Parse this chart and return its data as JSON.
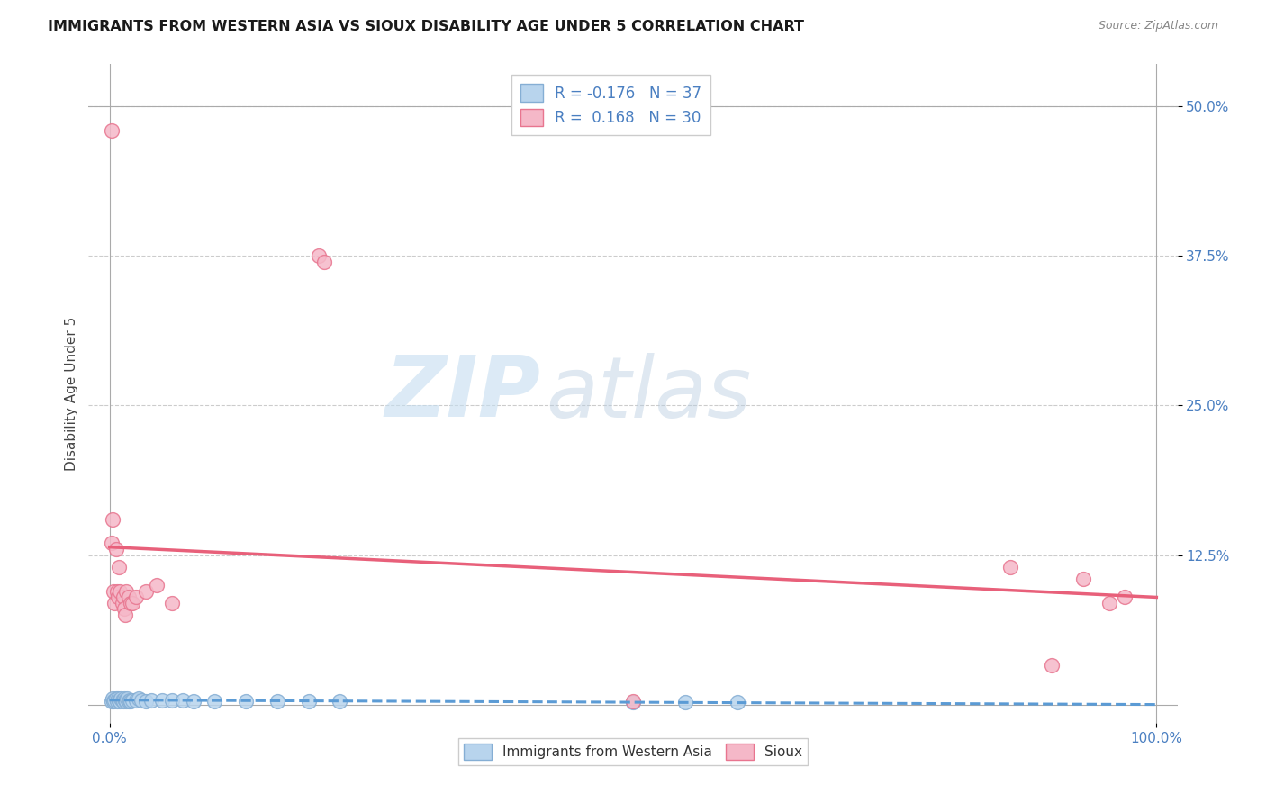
{
  "title": "IMMIGRANTS FROM WESTERN ASIA VS SIOUX DISABILITY AGE UNDER 5 CORRELATION CHART",
  "source_text": "Source: ZipAtlas.com",
  "ylabel": "Disability Age Under 5",
  "y_tick_labels": [
    "12.5%",
    "25.0%",
    "37.5%",
    "50.0%"
  ],
  "y_tick_values": [
    0.125,
    0.25,
    0.375,
    0.5
  ],
  "blue_R": -0.176,
  "blue_N": 37,
  "pink_R": 0.168,
  "pink_N": 30,
  "blue_fill": "#b8d4ed",
  "pink_fill": "#f5b8c8",
  "blue_edge": "#85aed4",
  "pink_edge": "#e8758f",
  "trend_blue_color": "#5b9bd5",
  "trend_pink_color": "#e8607a",
  "legend_label_blue": "Immigrants from Western Asia",
  "legend_label_pink": "Sioux",
  "watermark_zip": "ZIP",
  "watermark_atlas": "atlas",
  "background_color": "#ffffff",
  "grid_color": "#cccccc",
  "blue_x": [
    0.002,
    0.003,
    0.004,
    0.005,
    0.006,
    0.007,
    0.008,
    0.009,
    0.01,
    0.011,
    0.012,
    0.013,
    0.014,
    0.015,
    0.016,
    0.017,
    0.018,
    0.019,
    0.02,
    0.022,
    0.025,
    0.028,
    0.03,
    0.035,
    0.04,
    0.05,
    0.06,
    0.07,
    0.08,
    0.1,
    0.13,
    0.16,
    0.19,
    0.22,
    0.5,
    0.55,
    0.6
  ],
  "blue_y": [
    0.003,
    0.005,
    0.003,
    0.004,
    0.005,
    0.003,
    0.005,
    0.004,
    0.003,
    0.005,
    0.004,
    0.003,
    0.005,
    0.004,
    0.003,
    0.005,
    0.003,
    0.004,
    0.003,
    0.004,
    0.004,
    0.005,
    0.004,
    0.003,
    0.004,
    0.004,
    0.004,
    0.004,
    0.003,
    0.003,
    0.003,
    0.003,
    0.003,
    0.003,
    0.002,
    0.002,
    0.002
  ],
  "pink_x": [
    0.002,
    0.003,
    0.004,
    0.005,
    0.006,
    0.007,
    0.008,
    0.009,
    0.01,
    0.012,
    0.013,
    0.014,
    0.015,
    0.016,
    0.018,
    0.02,
    0.022,
    0.025,
    0.035,
    0.045,
    0.06,
    0.2,
    0.205,
    0.5,
    0.86,
    0.9,
    0.93,
    0.955,
    0.97,
    0.002
  ],
  "pink_y": [
    0.135,
    0.155,
    0.095,
    0.085,
    0.13,
    0.095,
    0.09,
    0.115,
    0.095,
    0.085,
    0.09,
    0.08,
    0.075,
    0.095,
    0.09,
    0.085,
    0.085,
    0.09,
    0.095,
    0.1,
    0.085,
    0.375,
    0.37,
    0.003,
    0.115,
    0.033,
    0.105,
    0.085,
    0.09,
    0.48
  ]
}
